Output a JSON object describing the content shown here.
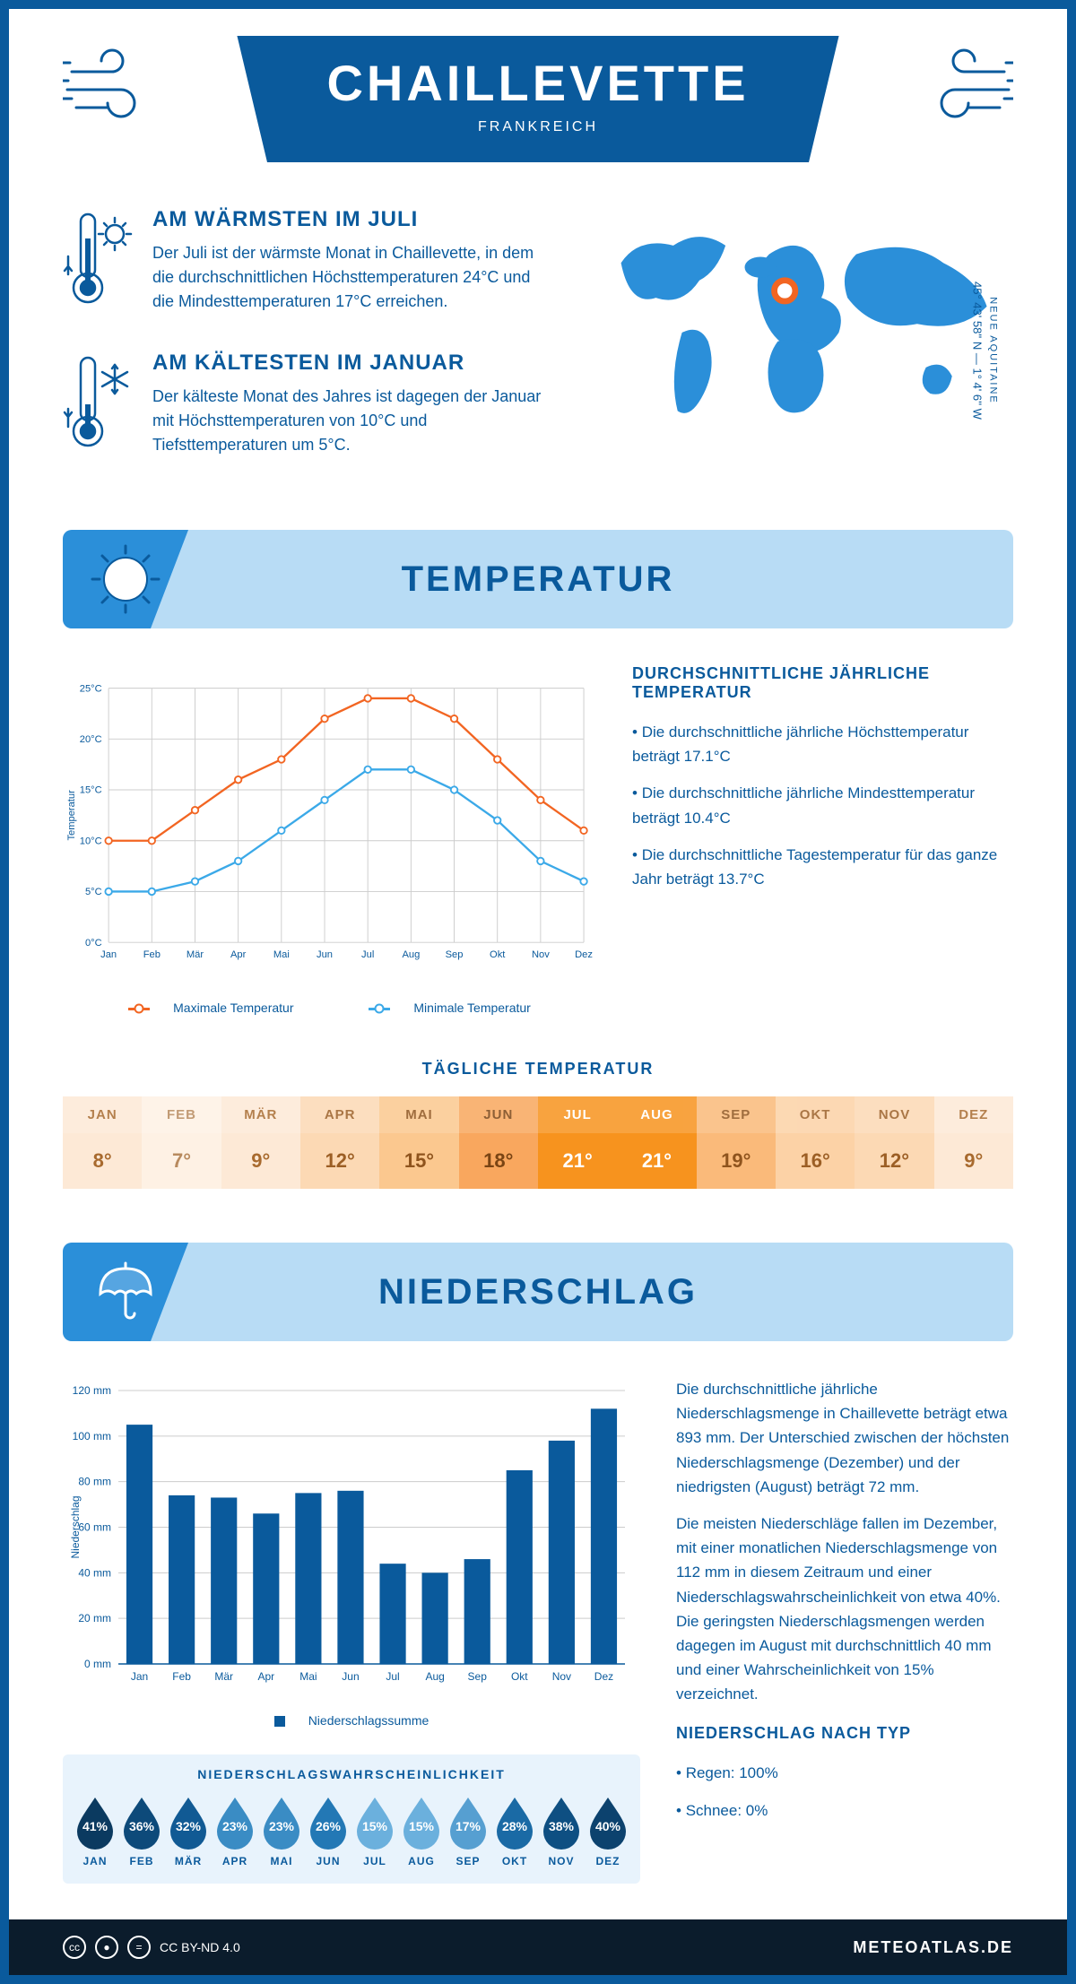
{
  "header": {
    "title": "CHAILLEVETTE",
    "country": "FRANKREICH"
  },
  "coords": {
    "lat": "45° 43' 58'' N — 1° 4' 6'' W",
    "region": "NEUE AQUITAINE"
  },
  "warmest": {
    "title": "AM WÄRMSTEN IM JULI",
    "text": "Der Juli ist der wärmste Monat in Chaillevette, in dem die durchschnittlichen Höchsttemperaturen 24°C und die Mindesttemperaturen 17°C erreichen."
  },
  "coldest": {
    "title": "AM KÄLTESTEN IM JANUAR",
    "text": "Der kälteste Monat des Jahres ist dagegen der Januar mit Höchsttemperaturen von 10°C und Tiefsttemperaturen um 5°C."
  },
  "temp_section": {
    "banner": "TEMPERATUR",
    "side_title": "DURCHSCHNITTLICHE JÄHRLICHE TEMPERATUR",
    "bullets": [
      "Die durchschnittliche jährliche Höchsttemperatur beträgt 17.1°C",
      "Die durchschnittliche jährliche Mindesttemperatur beträgt 10.4°C",
      "Die durchschnittliche Tagestemperatur für das ganze Jahr beträgt 13.7°C"
    ],
    "chart": {
      "type": "line",
      "months": [
        "Jan",
        "Feb",
        "Mär",
        "Apr",
        "Mai",
        "Jun",
        "Jul",
        "Aug",
        "Sep",
        "Okt",
        "Nov",
        "Dez"
      ],
      "series": [
        {
          "name": "Maximale Temperatur",
          "color": "#f26522",
          "values": [
            10,
            10,
            13,
            16,
            18,
            22,
            24,
            24,
            22,
            18,
            14,
            11
          ]
        },
        {
          "name": "Minimale Temperatur",
          "color": "#3ba9e8",
          "values": [
            5,
            5,
            6,
            8,
            11,
            14,
            17,
            17,
            15,
            12,
            8,
            6
          ]
        }
      ],
      "ylabel": "Temperatur",
      "ylim": [
        0,
        25
      ],
      "ytick_step": 5,
      "ytick_suffix": "°C",
      "grid_color": "#cccccc",
      "background": "#ffffff",
      "line_width": 2.5,
      "marker": "circle",
      "marker_size": 4
    },
    "legend_max": "Maximale Temperatur",
    "legend_min": "Minimale Temperatur",
    "daily_title": "TÄGLICHE TEMPERATUR",
    "daily": {
      "months": [
        "JAN",
        "FEB",
        "MÄR",
        "APR",
        "MAI",
        "JUN",
        "JUL",
        "AUG",
        "SEP",
        "OKT",
        "NOV",
        "DEZ"
      ],
      "values": [
        "8°",
        "7°",
        "9°",
        "12°",
        "15°",
        "18°",
        "21°",
        "21°",
        "19°",
        "16°",
        "12°",
        "9°"
      ],
      "bg_colors": [
        "#fde9d6",
        "#fef1e4",
        "#fde9d6",
        "#fcd9b4",
        "#fbc88f",
        "#f9a75e",
        "#f7931e",
        "#f7931e",
        "#faba7a",
        "#fcd2a6",
        "#fcd9b4",
        "#fde9d6"
      ],
      "text_colors": [
        "#a86a2e",
        "#b88a5e",
        "#a86a2e",
        "#9c5f25",
        "#8f541d",
        "#7a4413",
        "#ffffff",
        "#ffffff",
        "#8f541d",
        "#9c5f25",
        "#9c5f25",
        "#a86a2e"
      ]
    }
  },
  "precip_section": {
    "banner": "NIEDERSCHLAG",
    "chart": {
      "type": "bar",
      "months": [
        "Jan",
        "Feb",
        "Mär",
        "Apr",
        "Mai",
        "Jun",
        "Jul",
        "Aug",
        "Sep",
        "Okt",
        "Nov",
        "Dez"
      ],
      "values": [
        105,
        74,
        73,
        66,
        75,
        76,
        44,
        40,
        46,
        85,
        98,
        112
      ],
      "bar_color": "#0a5a9c",
      "ylabel": "Niederschlag",
      "ylim": [
        0,
        120
      ],
      "ytick_step": 20,
      "ytick_suffix": " mm",
      "grid_color": "#cccccc",
      "bar_width": 0.62,
      "legend": "Niederschlagssumme"
    },
    "text1": "Die durchschnittliche jährliche Niederschlagsmenge in Chaillevette beträgt etwa 893 mm. Der Unterschied zwischen der höchsten Niederschlagsmenge (Dezember) und der niedrigsten (August) beträgt 72 mm.",
    "text2": "Die meisten Niederschläge fallen im Dezember, mit einer monatlichen Niederschlagsmenge von 112 mm in diesem Zeitraum und einer Niederschlagswahrscheinlichkeit von etwa 40%. Die geringsten Niederschlagsmengen werden dagegen im August mit durchschnittlich 40 mm und einer Wahrscheinlichkeit von 15% verzeichnet.",
    "type_title": "NIEDERSCHLAG NACH TYP",
    "type_items": [
      "Regen: 100%",
      "Schnee: 0%"
    ],
    "prob_title": "NIEDERSCHLAGSWAHRSCHEINLICHKEIT",
    "prob": {
      "months": [
        "JAN",
        "FEB",
        "MÄR",
        "APR",
        "MAI",
        "JUN",
        "JUL",
        "AUG",
        "SEP",
        "OKT",
        "NOV",
        "DEZ"
      ],
      "values": [
        "41%",
        "36%",
        "32%",
        "23%",
        "23%",
        "26%",
        "15%",
        "15%",
        "17%",
        "28%",
        "38%",
        "40%"
      ],
      "colors": [
        "#0b3a60",
        "#0d4a7a",
        "#115a94",
        "#3a8cc4",
        "#3a8cc4",
        "#2378b5",
        "#6bb0dd",
        "#6bb0dd",
        "#569fd1",
        "#1a6aa5",
        "#0e4f82",
        "#0c426e"
      ]
    }
  },
  "footer": {
    "license": "CC BY-ND 4.0",
    "site": "METEOATLAS.DE"
  },
  "colors": {
    "brand": "#0a5a9c",
    "brand_light": "#2b8fd9",
    "banner_bg": "#b8dcf5",
    "footer_bg": "#0b1c2c"
  }
}
